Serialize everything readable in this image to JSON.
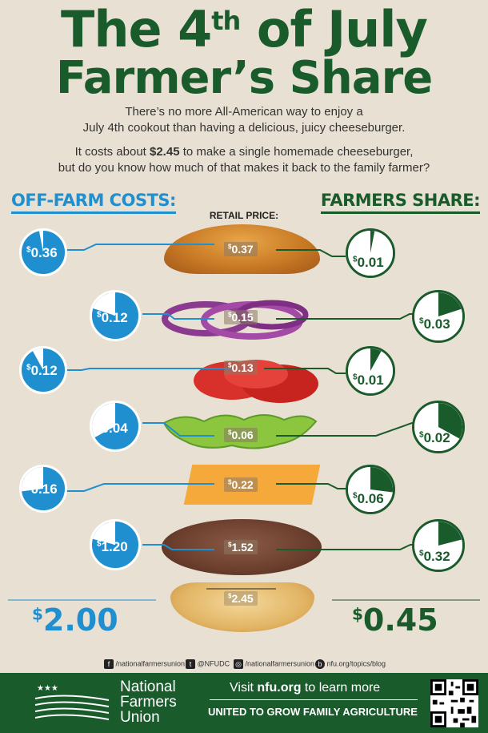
{
  "title": {
    "line1_a": "The 4",
    "line1_sup": "th",
    "line1_b": " of July",
    "line2": "Farmer’s Share"
  },
  "intro": {
    "p1_l1": "There’s no more All-American way to enjoy a",
    "p1_l2": "July 4th cookout than having a delicious, juicy cheeseburger.",
    "p2_l1_a": "It costs about ",
    "p2_l1_b": "$2.45",
    "p2_l1_c": " to make a single homemade cheeseburger,",
    "p2_l2": "but do you know how much of that makes it back to the family farmer?"
  },
  "headers": {
    "off_farm": "OFF-FARM COSTS:",
    "farmers_share": "FARMERS SHARE:",
    "retail": "RETAIL PRICE:"
  },
  "currency_symbol": "$",
  "colors": {
    "green": "#1a5b2c",
    "blue": "#1f8fd0",
    "background": "#e8e0d2"
  },
  "rows": [
    {
      "name": "bun-top",
      "off_farm": "0.36",
      "retail": "0.37",
      "farm": "0.01",
      "off_fraction": 0.97,
      "farm_fraction": 0.03
    },
    {
      "name": "onion",
      "off_farm": "0.12",
      "retail": "0.15",
      "farm": "0.03",
      "off_fraction": 0.8,
      "farm_fraction": 0.2
    },
    {
      "name": "tomato",
      "off_farm": "0.12",
      "retail": "0.13",
      "farm": "0.01",
      "off_fraction": 0.92,
      "farm_fraction": 0.08
    },
    {
      "name": "lettuce",
      "off_farm": "0.04",
      "retail": "0.06",
      "farm": "0.02",
      "off_fraction": 0.67,
      "farm_fraction": 0.33
    },
    {
      "name": "cheese",
      "off_farm": "0.16",
      "retail": "0.22",
      "farm": "0.06",
      "off_fraction": 0.73,
      "farm_fraction": 0.27
    },
    {
      "name": "patty",
      "off_farm": "1.20",
      "retail": "1.52",
      "farm": "0.32",
      "off_fraction": 0.79,
      "farm_fraction": 0.21
    }
  ],
  "retail_total": "2.45",
  "totals": {
    "off_farm": "2.00",
    "farm": "0.45"
  },
  "social": {
    "facebook": "/nationalfarmersunion",
    "twitter": "@NFUDC",
    "instagram": "/nationalfarmersunion",
    "blog": "nfu.org/topics/blog"
  },
  "footer": {
    "org_line1": "National",
    "org_line2": "Farmers",
    "org_line3": "Union",
    "visit_a": "Visit ",
    "visit_b": "nfu.org",
    "visit_c": " to learn more",
    "tagline": "UNITED TO GROW FAMILY AGRICULTURE"
  }
}
